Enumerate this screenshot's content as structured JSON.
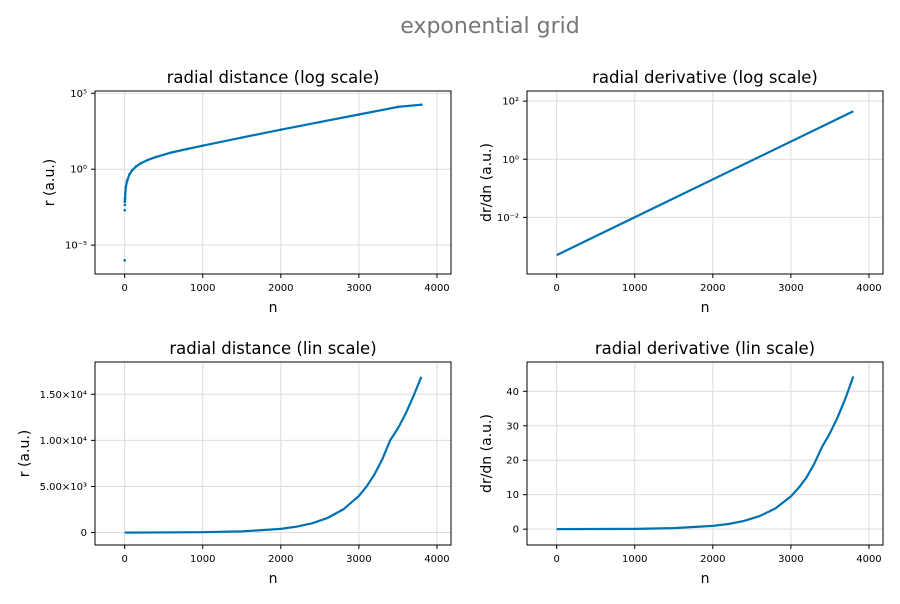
{
  "figure": {
    "suptitle": "exponential grid"
  },
  "colors": {
    "series": "#0072B2",
    "grid": "#dcdcdc",
    "title": "#777777"
  },
  "chart_data": [
    {
      "type": "scatter",
      "title": "radial distance (log scale)",
      "xlabel": "n",
      "ylabel": "r (a.u.)",
      "xlim": [
        -380,
        4180
      ],
      "ylim": [
        -6.9,
        5.15
      ],
      "yscale": "log10",
      "xticks": [
        {
          "v": 0,
          "label": "0"
        },
        {
          "v": 1000,
          "label": "1000"
        },
        {
          "v": 2000,
          "label": "2000"
        },
        {
          "v": 3000,
          "label": "3000"
        },
        {
          "v": 4000,
          "label": "4000"
        }
      ],
      "yticks": [
        {
          "v": 5,
          "label": "10⁵"
        },
        {
          "v": 0,
          "label": "10⁰"
        },
        {
          "v": -5,
          "label": "10⁻⁵"
        }
      ],
      "grid": true,
      "series": [
        {
          "x": [
            0,
            1,
            2,
            3,
            4,
            5,
            8,
            15,
            30,
            60,
            100,
            150,
            200,
            300,
            400,
            600,
            800,
            1000,
            1500,
            2000,
            2500,
            3000,
            3500,
            3800
          ],
          "y": [
            -6,
            -2.7,
            -2.35,
            -2.15,
            -2.0,
            -1.88,
            -1.6,
            -1.2,
            -0.78,
            -0.35,
            -0.05,
            0.2,
            0.37,
            0.62,
            0.8,
            1.1,
            1.33,
            1.55,
            2.08,
            2.6,
            3.1,
            3.6,
            4.1,
            4.25
          ]
        }
      ]
    },
    {
      "type": "line",
      "title": "radial derivative (log scale)",
      "xlabel": "n",
      "ylabel": "dr/dn (a.u.)",
      "xlim": [
        -380,
        4180
      ],
      "ylim": [
        -3.95,
        2.35
      ],
      "yscale": "log10",
      "xticks": [
        {
          "v": 0,
          "label": "0"
        },
        {
          "v": 1000,
          "label": "1000"
        },
        {
          "v": 2000,
          "label": "2000"
        },
        {
          "v": 3000,
          "label": "3000"
        },
        {
          "v": 4000,
          "label": "4000"
        }
      ],
      "yticks": [
        {
          "v": 2,
          "label": "10²"
        },
        {
          "v": 0,
          "label": "10⁰"
        },
        {
          "v": -2,
          "label": "10⁻²"
        }
      ],
      "grid": true,
      "series": [
        {
          "x": [
            0,
            3800
          ],
          "y": [
            -3.3,
            1.65
          ]
        }
      ]
    },
    {
      "type": "line",
      "title": "radial distance (lin scale)",
      "xlabel": "n",
      "ylabel": "r (a.u.)",
      "xlim": [
        -380,
        4180
      ],
      "ylim": [
        -1350,
        18500
      ],
      "yscale": "linear",
      "xticks": [
        {
          "v": 0,
          "label": "0"
        },
        {
          "v": 1000,
          "label": "1000"
        },
        {
          "v": 2000,
          "label": "2000"
        },
        {
          "v": 3000,
          "label": "3000"
        },
        {
          "v": 4000,
          "label": "4000"
        }
      ],
      "yticks": [
        {
          "v": 0,
          "label": "0"
        },
        {
          "v": 5000,
          "label": "5.00×10³"
        },
        {
          "v": 10000,
          "label": "1.00×10⁴"
        },
        {
          "v": 15000,
          "label": "1.50×10⁴"
        }
      ],
      "grid": true,
      "series": [
        {
          "x": [
            0,
            1000,
            1500,
            2000,
            2200,
            2400,
            2600,
            2800,
            3000,
            3100,
            3200,
            3300,
            3400,
            3500,
            3600,
            3700,
            3800
          ],
          "y": [
            0,
            35,
            120,
            398,
            630,
            1000,
            1585,
            2512,
            3981,
            5012,
            6310,
            7943,
            10000,
            11300,
            12900,
            14800,
            16900
          ]
        }
      ]
    },
    {
      "type": "line",
      "title": "radial derivative (lin scale)",
      "xlabel": "n",
      "ylabel": "dr/dn (a.u.)",
      "xlim": [
        -380,
        4180
      ],
      "ylim": [
        -4.6,
        48.5
      ],
      "yscale": "linear",
      "xticks": [
        {
          "v": 0,
          "label": "0"
        },
        {
          "v": 1000,
          "label": "1000"
        },
        {
          "v": 2000,
          "label": "2000"
        },
        {
          "v": 3000,
          "label": "3000"
        },
        {
          "v": 4000,
          "label": "4000"
        }
      ],
      "yticks": [
        {
          "v": 0,
          "label": "0"
        },
        {
          "v": 10,
          "label": "10"
        },
        {
          "v": 20,
          "label": "20"
        },
        {
          "v": 30,
          "label": "30"
        },
        {
          "v": 40,
          "label": "40"
        }
      ],
      "grid": true,
      "series": [
        {
          "x": [
            0,
            1000,
            1500,
            2000,
            2200,
            2400,
            2600,
            2800,
            3000,
            3100,
            3200,
            3300,
            3400,
            3500,
            3600,
            3700,
            3800
          ],
          "y": [
            0,
            0.08,
            0.3,
            0.95,
            1.5,
            2.4,
            3.8,
            6.0,
            9.5,
            12.0,
            15.0,
            19.0,
            23.9,
            27.8,
            32.5,
            38.0,
            44.3
          ]
        }
      ]
    }
  ]
}
